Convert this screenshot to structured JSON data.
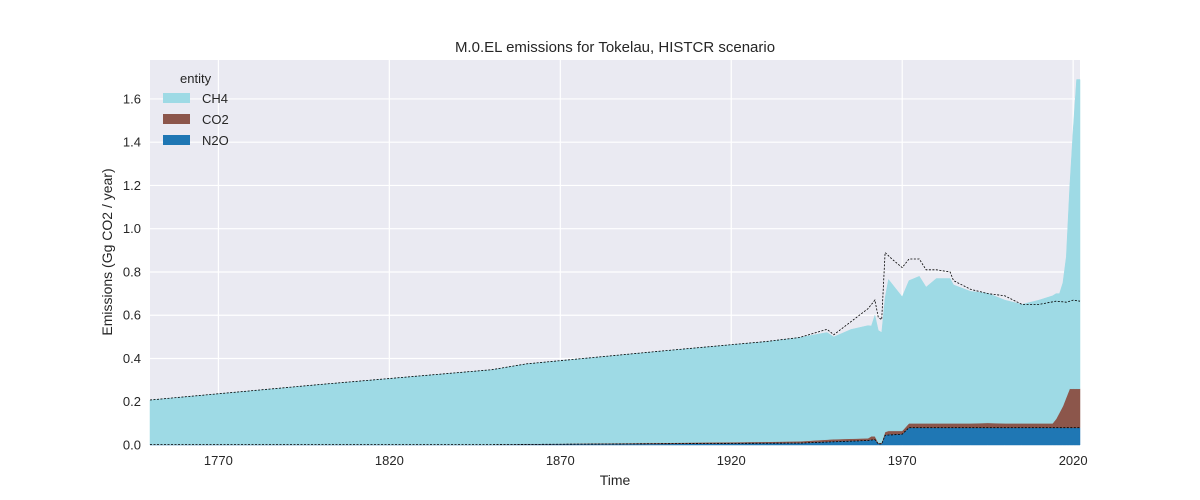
{
  "chart_data": {
    "type": "area",
    "title": "M.0.EL emissions for Tokelau, HISTCR scenario",
    "xlabel": "Time",
    "ylabel": "Emissions (Gg CO2 / year)",
    "xlim": [
      1750,
      2022
    ],
    "ylim": [
      0,
      1.78
    ],
    "xticks": [
      1770,
      1820,
      1870,
      1920,
      1970,
      2020
    ],
    "yticks": [
      0.0,
      0.2,
      0.4,
      0.6,
      0.8,
      1.0,
      1.2,
      1.4,
      1.6
    ],
    "grid": true,
    "legend": {
      "title": "entity",
      "position": "top-left"
    },
    "stack_order": [
      "N2O",
      "CO2",
      "CH4"
    ],
    "x": [
      1750,
      1800,
      1850,
      1860,
      1900,
      1930,
      1940,
      1948,
      1950,
      1955,
      1960,
      1961,
      1962,
      1963,
      1964,
      1965,
      1966,
      1970,
      1972,
      1975,
      1977,
      1980,
      1984,
      1985,
      1990,
      1995,
      2000,
      2005,
      2010,
      2014,
      2015,
      2016,
      2017,
      2018,
      2019,
      2020,
      2021,
      2022
    ],
    "series": [
      {
        "name": "N2O",
        "color": "#1f77b4",
        "values": [
          0.002,
          0.002,
          0.002,
          0.003,
          0.005,
          0.008,
          0.009,
          0.015,
          0.017,
          0.019,
          0.021,
          0.025,
          0.025,
          0.005,
          0.005,
          0.045,
          0.05,
          0.05,
          0.08,
          0.08,
          0.08,
          0.08,
          0.08,
          0.08,
          0.08,
          0.08,
          0.08,
          0.08,
          0.08,
          0.08,
          0.08,
          0.08,
          0.08,
          0.08,
          0.08,
          0.08,
          0.08,
          0.08
        ]
      },
      {
        "name": "CO2",
        "color": "#8c564b",
        "values": [
          0.0,
          0.0,
          0.0,
          0.002,
          0.005,
          0.007,
          0.008,
          0.01,
          0.01,
          0.01,
          0.01,
          0.015,
          0.015,
          0.005,
          0.005,
          0.015,
          0.015,
          0.015,
          0.02,
          0.02,
          0.02,
          0.02,
          0.02,
          0.02,
          0.02,
          0.022,
          0.02,
          0.02,
          0.02,
          0.02,
          0.04,
          0.07,
          0.1,
          0.14,
          0.18,
          0.18,
          0.18,
          0.18
        ]
      },
      {
        "name": "CH4",
        "color": "#9edae5",
        "values": [
          0.206,
          0.278,
          0.346,
          0.37,
          0.425,
          0.463,
          0.48,
          0.495,
          0.473,
          0.505,
          0.521,
          0.51,
          0.56,
          0.52,
          0.51,
          0.62,
          0.7,
          0.62,
          0.66,
          0.68,
          0.63,
          0.67,
          0.67,
          0.64,
          0.61,
          0.6,
          0.57,
          0.55,
          0.57,
          0.59,
          0.58,
          0.55,
          0.57,
          0.65,
          0.93,
          1.2,
          1.43,
          1.43
        ]
      }
    ],
    "reference_lines": [
      {
        "style": "dashed",
        "color": "#000000",
        "x": [
          1750,
          1800,
          1850,
          1860,
          1900,
          1930,
          1940,
          1948,
          1950,
          1955,
          1960,
          1962,
          1963,
          1964,
          1965,
          1967,
          1970,
          1972,
          1975,
          1977,
          1980,
          1984,
          1985,
          1990,
          1995,
          2000,
          2005,
          2010,
          2015,
          2018,
          2019,
          2020,
          2022
        ],
        "values": [
          0.208,
          0.28,
          0.348,
          0.375,
          0.435,
          0.478,
          0.497,
          0.535,
          0.51,
          0.57,
          0.63,
          0.67,
          0.59,
          0.58,
          0.89,
          0.86,
          0.82,
          0.86,
          0.86,
          0.81,
          0.81,
          0.8,
          0.76,
          0.72,
          0.7,
          0.69,
          0.65,
          0.65,
          0.665,
          0.66,
          0.665,
          0.67,
          0.665
        ]
      },
      {
        "style": "dashed",
        "color": "#000000",
        "x": [
          1750,
          1850,
          1900,
          1940,
          1950,
          1960,
          1962,
          1963,
          1964,
          1965,
          1970,
          1972,
          2022
        ],
        "values": [
          0.002,
          0.002,
          0.006,
          0.009,
          0.015,
          0.021,
          0.025,
          0.005,
          0.005,
          0.045,
          0.05,
          0.08,
          0.08
        ]
      }
    ]
  }
}
